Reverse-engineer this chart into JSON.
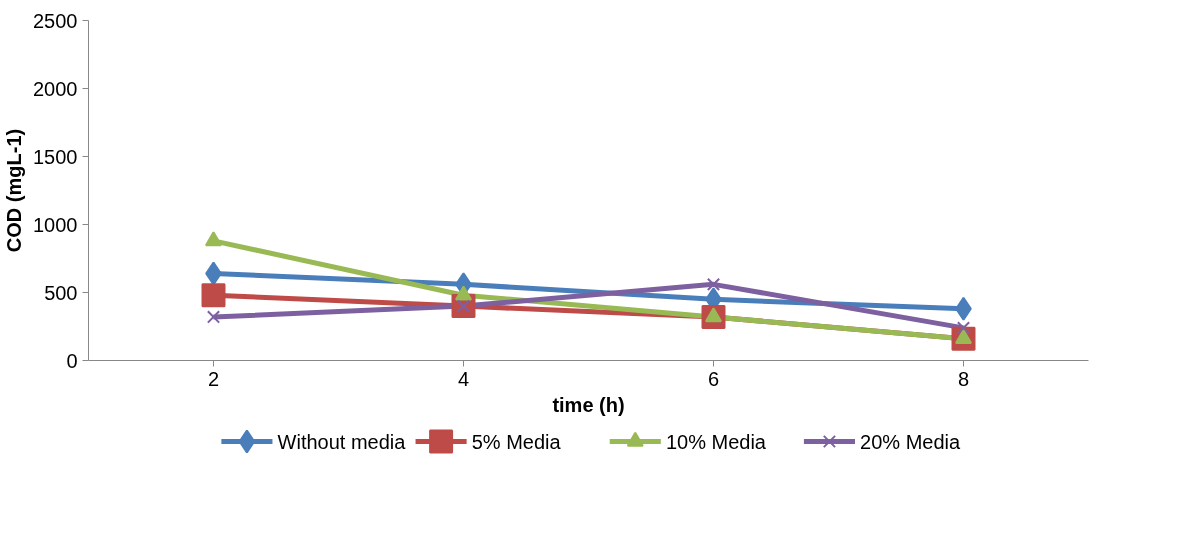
{
  "chart_data": {
    "type": "line",
    "xlabel": "time (h)",
    "ylabel": "COD (mgL-1)",
    "categories": [
      "2",
      "4",
      "6",
      "8"
    ],
    "series": [
      {
        "name": "Without media",
        "color": "#4a7ebb",
        "marker": "diamond",
        "values": [
          640,
          560,
          450,
          380
        ]
      },
      {
        "name": "5% Media",
        "color": "#be4b48",
        "marker": "square",
        "values": [
          480,
          400,
          320,
          160
        ]
      },
      {
        "name": "10% Media",
        "color": "#98b954",
        "marker": "triangle",
        "values": [
          880,
          480,
          320,
          160
        ]
      },
      {
        "name": "20% Media",
        "color": "#7d60a0",
        "marker": "cross",
        "values": [
          320,
          400,
          560,
          240
        ]
      }
    ],
    "ylim": [
      0,
      2500
    ],
    "yticks": [
      0,
      500,
      1000,
      1500,
      2000,
      2500
    ],
    "grid": false,
    "legend": "bottom",
    "line_style": "solid"
  }
}
